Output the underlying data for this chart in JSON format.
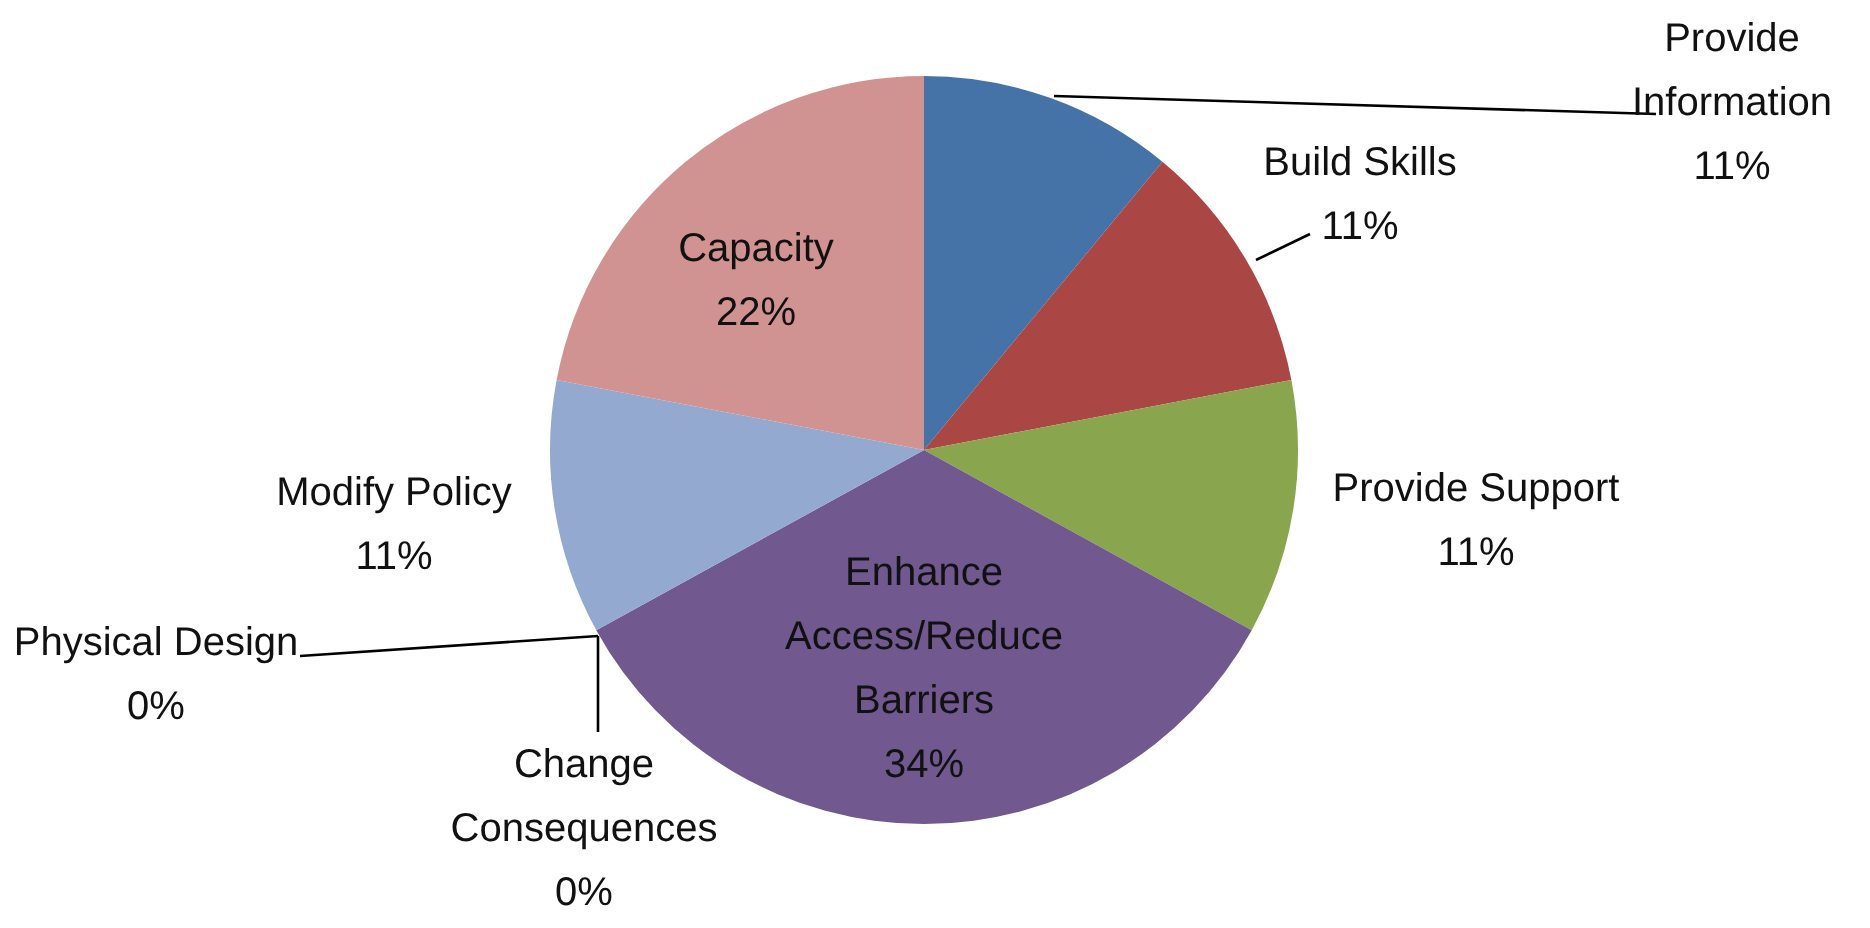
{
  "chart_data": {
    "type": "pie",
    "categories": [
      "Provide Information",
      "Build Skills",
      "Provide Support",
      "Enhance Access/Reduce Barriers",
      "Change Consequences",
      "Physical Design",
      "Modify Policy",
      "Capacity"
    ],
    "values": [
      11,
      11,
      11,
      34,
      0,
      0,
      11,
      22
    ],
    "value_labels": [
      "11%",
      "11%",
      "11%",
      "34%",
      "0%",
      "0%",
      "11%",
      "22%"
    ],
    "colors": [
      "#4572a7",
      "#aa4643",
      "#89a54e",
      "#71588f",
      "#4198af",
      "#db843d",
      "#93a9cf",
      "#d19392"
    ]
  }
}
